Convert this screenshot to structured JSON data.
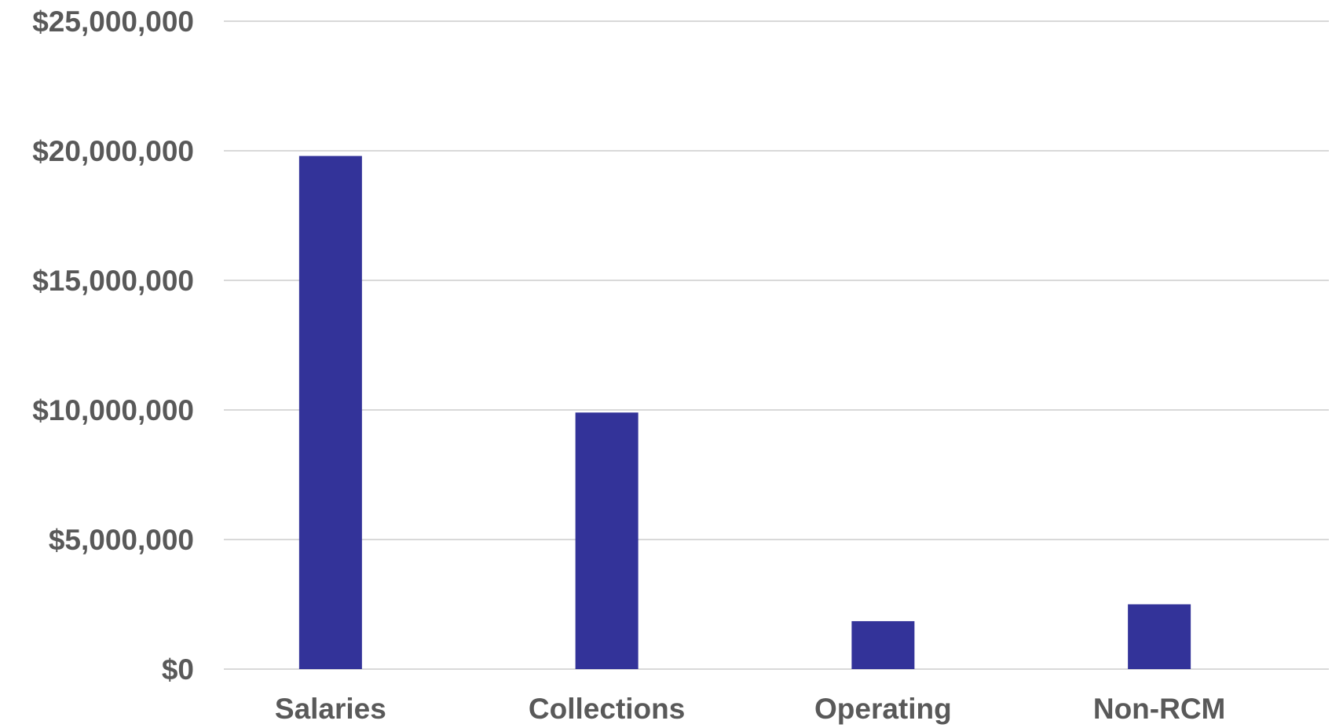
{
  "chart_data": {
    "type": "bar",
    "categories": [
      "Salaries",
      "Collections",
      "Operating",
      "Non-RCM"
    ],
    "values": [
      19800000,
      9900000,
      1850000,
      2500000
    ],
    "ylim": [
      0,
      25000000
    ],
    "yticks": [
      0,
      5000000,
      10000000,
      15000000,
      20000000,
      25000000
    ],
    "ytick_labels": [
      "$0",
      "$5,000,000",
      "$10,000,000",
      "$15,000,000",
      "$20,000,000",
      "$25,000,000"
    ],
    "grid": true,
    "legend": "none",
    "bar_color": "#333399",
    "grid_color": "#d9d9d9",
    "label_color": "#595959"
  }
}
